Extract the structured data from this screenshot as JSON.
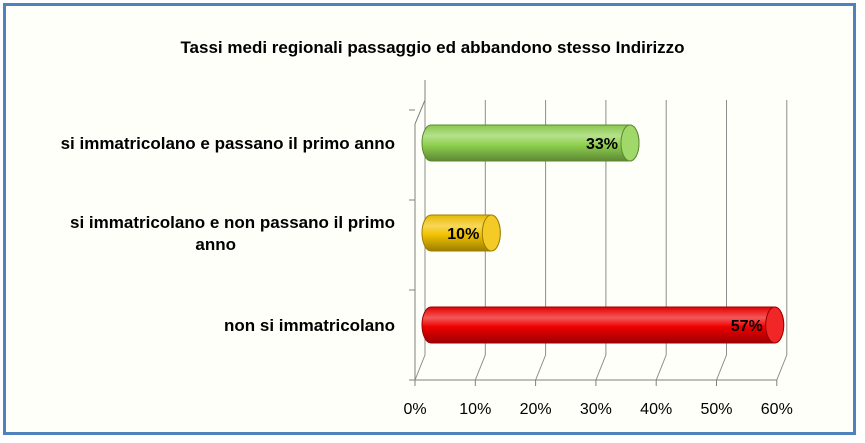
{
  "chart_data": {
    "type": "bar",
    "orientation": "horizontal",
    "style": "3d-cylinder",
    "title": "Tassi medi regionali passaggio ed abbandono stesso Indirizzo",
    "categories": [
      [
        "si immatricolano e passano il primo anno"
      ],
      [
        "si immatricolano e non passano il primo",
        "anno"
      ],
      [
        "non si immatricolano"
      ]
    ],
    "values": [
      33,
      10,
      57
    ],
    "data_labels": [
      "33%",
      "10%",
      "57%"
    ],
    "colors": [
      "#8fd14f",
      "#f2c200",
      "#ee0000"
    ],
    "x_ticks": [
      "0%",
      "10%",
      "20%",
      "30%",
      "40%",
      "50%",
      "60%"
    ],
    "xlim": [
      0,
      60
    ],
    "grid": true,
    "legend": "none"
  }
}
